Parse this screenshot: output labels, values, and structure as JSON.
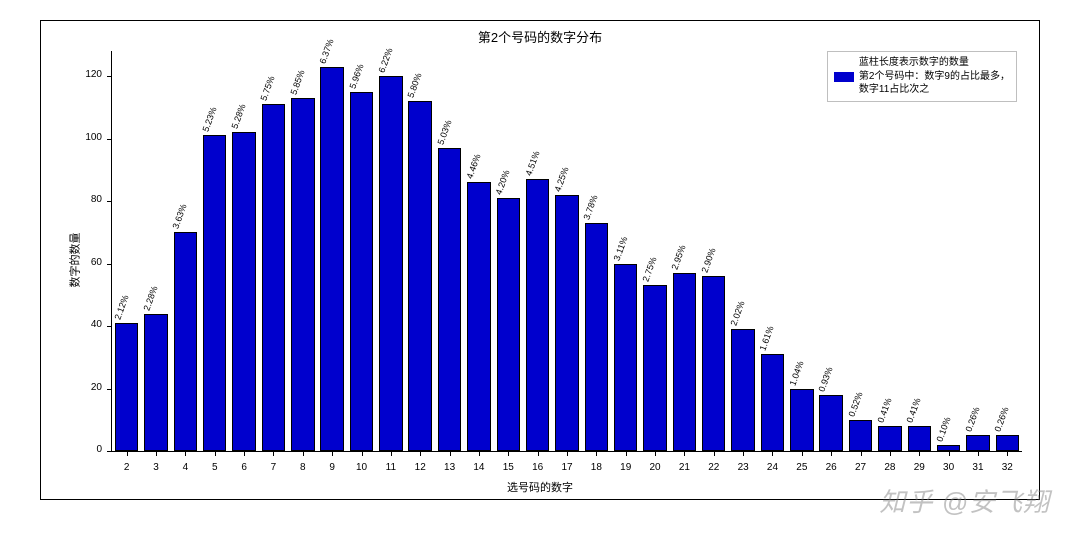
{
  "chart": {
    "type": "bar",
    "title": "第2个号码的数字分布",
    "xlabel": "选号码的数字",
    "ylabel": "数字的数量",
    "title_fontsize": 13,
    "label_fontsize": 11,
    "tick_fontsize": 10,
    "value_label_fontsize": 9,
    "bar_color": "#0000cd",
    "bar_edge_color": "#000000",
    "background_color": "#ffffff",
    "axis_color": "#000000",
    "ylim": [
      0,
      128
    ],
    "yticks": [
      0,
      20,
      40,
      60,
      80,
      100,
      120
    ],
    "bar_width_ratio": 0.8,
    "value_label_rotation_deg": 70,
    "categories": [
      "2",
      "3",
      "4",
      "5",
      "6",
      "7",
      "8",
      "9",
      "10",
      "11",
      "12",
      "13",
      "14",
      "15",
      "16",
      "17",
      "18",
      "19",
      "20",
      "21",
      "22",
      "23",
      "24",
      "25",
      "26",
      "27",
      "28",
      "29",
      "30",
      "31",
      "32"
    ],
    "values": [
      41,
      44,
      70,
      101,
      102,
      111,
      113,
      123,
      115,
      120,
      112,
      97,
      86,
      81,
      87,
      82,
      73,
      60,
      53,
      57,
      56,
      39,
      31,
      20,
      18,
      10,
      8,
      8,
      2,
      5,
      5
    ],
    "value_labels": [
      "2.12%",
      "2.28%",
      "3.63%",
      "5.23%",
      "5.28%",
      "5.75%",
      "5.85%",
      "6.37%",
      "5.96%",
      "6.22%",
      "5.80%",
      "5.03%",
      "4.46%",
      "4.20%",
      "4.51%",
      "4.25%",
      "3.78%",
      "3.11%",
      "2.75%",
      "2.95%",
      "2.90%",
      "2.02%",
      "1.61%",
      "1.04%",
      "0.93%",
      "0.52%",
      "0.41%",
      "0.41%",
      "0.10%",
      "0.26%",
      "0.26%"
    ],
    "legend": {
      "position": "upper-right",
      "border_color": "#bfbfbf",
      "lines": [
        {
          "swatch": null,
          "text": "蓝柱长度表示数字的数量"
        },
        {
          "swatch": "#0000cd",
          "text": "第2个号码中：数字9的占比最多，\n数字11占比次之"
        }
      ]
    }
  },
  "watermark": "知乎 @安飞翔"
}
